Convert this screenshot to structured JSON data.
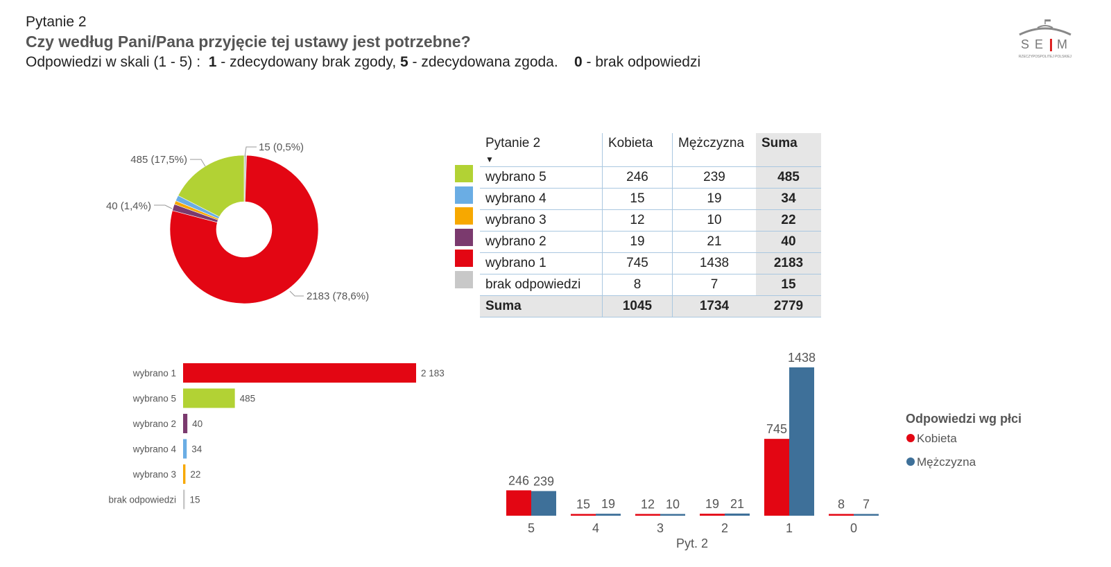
{
  "header": {
    "question": "Pytanie 2",
    "title": "Czy według Pani/Pana przyjęcie tej ustawy jest potrzebne?",
    "scale_prefix": "Odpowiedzi w skali (1 - 5) :  ",
    "n1": "1",
    "t1": " - zdecydowany brak zgody, ",
    "n5": "5",
    "t5": " - zdecydowana zgoda.    ",
    "n0": "0",
    "t0": " - brak odpowiedzi"
  },
  "logo": {
    "text": "SEJM",
    "subtext": "RZECZYPOSPOLITEJ POLSKIEJ"
  },
  "table": {
    "headers": [
      "Pytanie 2",
      "Kobieta",
      "Mężczyzna",
      "Suma"
    ],
    "rows": [
      {
        "label": "wybrano 5",
        "k": "246",
        "m": "239",
        "s": "485",
        "color": "#b2d234"
      },
      {
        "label": "wybrano 4",
        "k": "15",
        "m": "19",
        "s": "34",
        "color": "#6aade4"
      },
      {
        "label": "wybrano 3",
        "k": "12",
        "m": "10",
        "s": "22",
        "color": "#f7a800"
      },
      {
        "label": "wybrano 2",
        "k": "19",
        "m": "21",
        "s": "40",
        "color": "#7b3a6e"
      },
      {
        "label": "wybrano 1",
        "k": "745",
        "m": "1438",
        "s": "2183",
        "color": "#e30613"
      },
      {
        "label": "brak odpowiedzi",
        "k": "8",
        "m": "7",
        "s": "15",
        "color": "#c8c8c8"
      }
    ],
    "footer": {
      "label": "Suma",
      "k": "1045",
      "m": "1734",
      "s": "2779"
    }
  },
  "chart_data": [
    {
      "type": "pie",
      "donut": true,
      "slices": [
        {
          "category": "brak odpowiedzi",
          "value": 15,
          "label": "15 (0,5%)",
          "color": "#c8c8c8"
        },
        {
          "category": "wybrano 1",
          "value": 2183,
          "label": "2183 (78,6%)",
          "color": "#e30613"
        },
        {
          "category": "wybrano 2",
          "value": 40,
          "label": "40 (1,4%)",
          "color": "#7b3a6e"
        },
        {
          "category": "wybrano 3",
          "value": 22,
          "label": "",
          "color": "#f7a800"
        },
        {
          "category": "wybrano 4",
          "value": 34,
          "label": "",
          "color": "#6aade4"
        },
        {
          "category": "wybrano 5",
          "value": 485,
          "label": "485 (17,5%)",
          "color": "#b2d234"
        }
      ]
    },
    {
      "type": "bar",
      "orientation": "horizontal",
      "categories": [
        "wybrano 1",
        "wybrano 5",
        "wybrano 2",
        "wybrano 4",
        "wybrano 3",
        "brak odpowiedzi"
      ],
      "values": [
        2183,
        485,
        40,
        34,
        22,
        15
      ],
      "value_labels": [
        "2 183",
        "485",
        "40",
        "34",
        "22",
        "15"
      ],
      "colors": [
        "#e30613",
        "#b2d234",
        "#7b3a6e",
        "#6aade4",
        "#f7a800",
        "#c8c8c8"
      ]
    },
    {
      "type": "bar",
      "orientation": "vertical",
      "xlabel": "Pyt. 2",
      "categories": [
        "5",
        "4",
        "3",
        "2",
        "1",
        "0"
      ],
      "series": [
        {
          "name": "Kobieta",
          "color": "#e30613",
          "values": [
            246,
            15,
            12,
            19,
            745,
            8
          ]
        },
        {
          "name": "Mężczyzna",
          "color": "#3e7099",
          "values": [
            239,
            19,
            10,
            21,
            1438,
            7
          ]
        }
      ],
      "legend": {
        "title": "Odpowiedzi wg płci",
        "position": "right"
      }
    }
  ]
}
